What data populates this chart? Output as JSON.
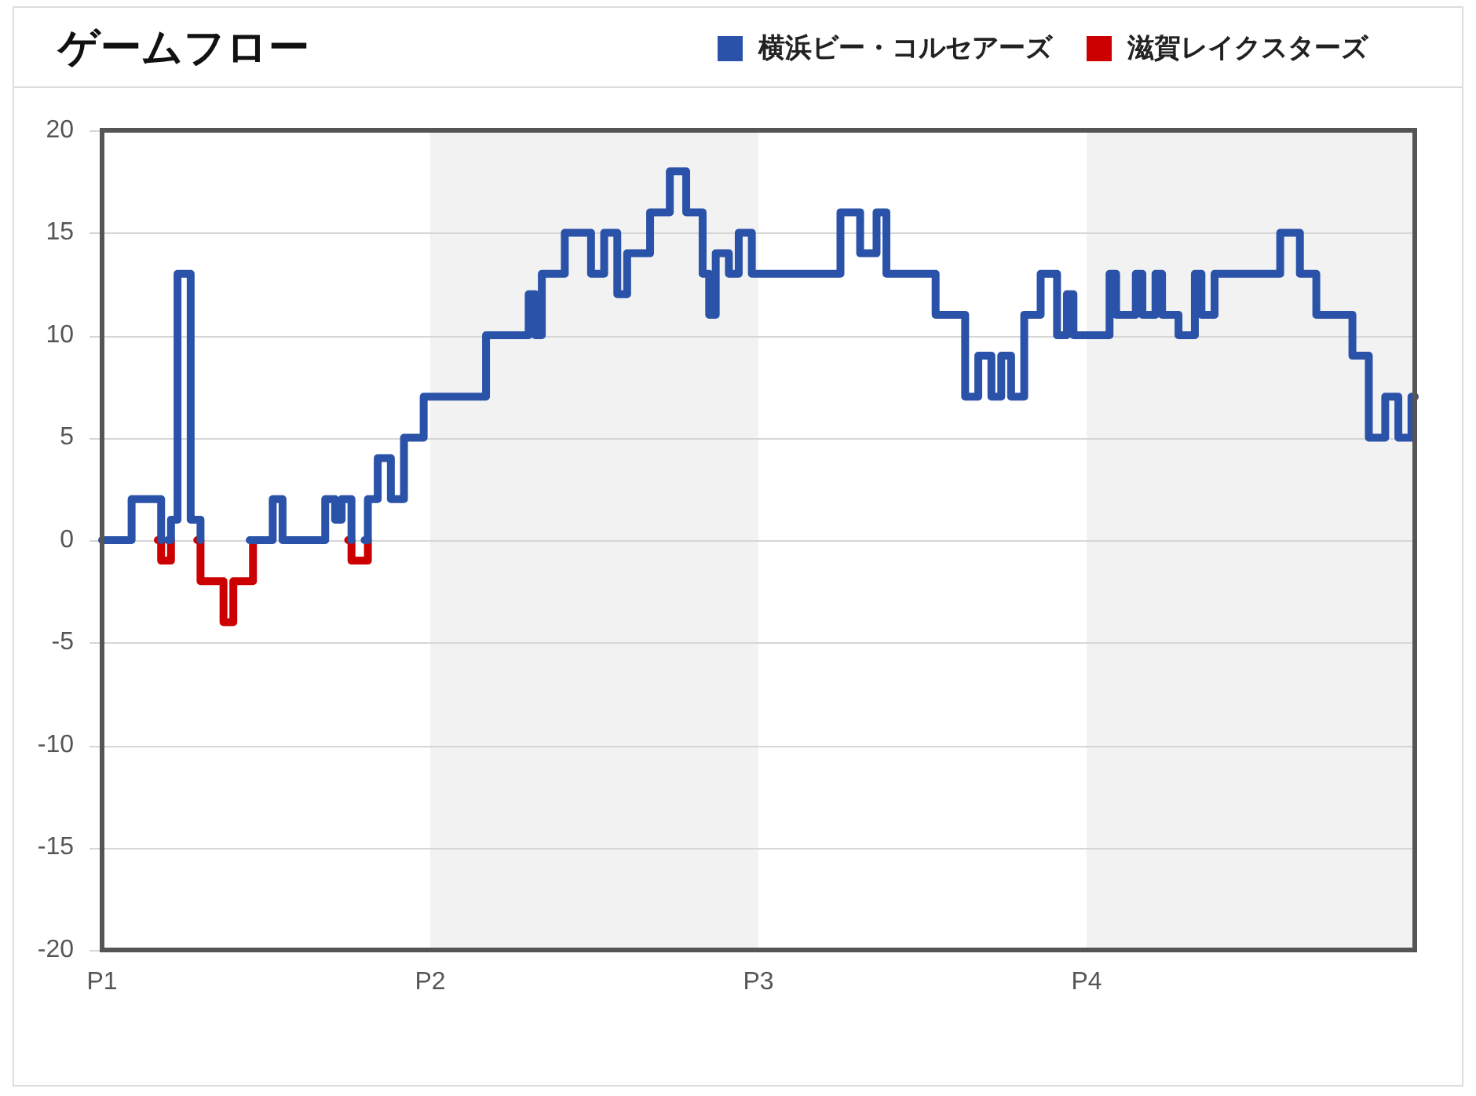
{
  "chart_data": {
    "type": "step",
    "title": "ゲームフロー",
    "legend": "top right",
    "grid": "y",
    "line_style": "solid",
    "marker": "none",
    "categories": [
      "P1",
      null,
      null,
      null,
      null,
      null,
      null,
      null,
      null,
      null,
      null,
      null,
      null,
      null,
      null,
      null,
      null,
      null,
      null,
      null,
      null,
      null,
      null,
      null,
      null,
      null,
      null,
      null,
      null,
      null,
      null,
      null,
      null,
      null,
      null,
      null,
      null,
      null,
      null,
      null,
      null,
      null,
      null,
      null,
      null,
      null,
      null,
      null,
      null,
      null,
      null,
      null,
      null,
      null,
      null,
      null,
      null,
      null,
      null,
      null,
      null,
      null,
      null,
      null,
      null,
      null,
      null,
      null,
      null,
      null,
      null,
      null,
      null,
      null,
      null,
      null,
      null,
      null,
      null,
      null,
      null,
      null,
      null,
      null,
      null,
      null,
      null,
      null,
      null,
      null,
      null,
      null,
      null,
      null,
      null,
      null,
      null,
      null,
      null,
      null,
      "P2",
      null,
      null,
      null,
      null,
      null,
      null,
      null,
      null,
      null,
      null,
      null,
      null,
      null,
      null,
      null,
      null,
      null,
      null,
      null,
      null,
      null,
      null,
      null,
      null,
      null,
      null,
      null,
      null,
      null,
      null,
      null,
      null,
      null,
      null,
      null,
      null,
      null,
      null,
      null,
      null,
      null,
      null,
      null,
      null,
      null,
      null,
      null,
      null,
      null,
      null,
      null,
      null,
      null,
      null,
      null,
      null,
      null,
      null,
      null,
      null,
      null,
      null,
      null,
      null,
      null,
      null,
      null,
      null,
      null,
      null,
      null,
      null,
      null,
      null,
      null,
      null,
      null,
      null,
      null,
      null,
      null,
      null,
      null,
      null,
      null,
      null,
      null,
      null,
      null,
      null,
      null,
      null,
      null,
      null,
      null,
      null,
      null,
      null,
      null,
      "P3",
      null,
      null,
      null,
      null,
      null,
      null,
      null,
      null,
      null,
      null,
      null,
      null,
      null,
      null,
      null,
      null,
      null,
      null,
      null,
      null,
      null,
      null,
      null,
      null,
      null,
      null,
      null,
      null,
      null,
      null,
      null,
      null,
      null,
      null,
      null,
      null,
      null,
      null,
      null,
      null,
      null,
      null,
      null,
      null,
      null,
      null,
      null,
      null,
      null,
      null,
      null,
      null,
      null,
      null,
      null,
      null,
      null,
      null,
      null,
      null,
      null,
      null,
      null,
      null,
      null,
      null,
      null,
      null,
      null,
      null,
      null,
      null,
      null,
      null,
      null,
      null,
      null,
      null,
      null,
      null,
      null,
      null,
      null,
      null,
      null,
      null,
      null,
      null,
      null,
      null,
      null,
      null,
      null,
      null,
      null,
      null,
      null,
      null,
      null,
      "P4",
      null,
      null,
      null,
      null,
      null,
      null,
      null,
      null,
      null,
      null,
      null,
      null,
      null,
      null,
      null,
      null,
      null,
      null,
      null,
      null,
      null,
      null,
      null,
      null,
      null,
      null,
      null,
      null,
      null,
      null,
      null,
      null,
      null,
      null,
      null,
      null,
      null,
      null,
      null,
      null,
      null,
      null,
      null,
      null,
      null,
      null,
      null,
      null,
      null,
      null,
      null,
      null,
      null,
      null,
      null,
      null,
      null,
      null,
      null,
      null,
      null,
      null,
      null,
      null,
      null,
      null,
      null,
      null,
      null,
      null,
      null,
      null,
      null,
      null,
      null,
      null,
      null,
      null,
      null,
      null,
      null,
      null,
      null,
      null,
      null,
      null,
      null,
      null,
      null,
      null,
      null,
      null,
      null,
      null,
      null,
      null,
      null,
      null,
      null,
      null
    ],
    "ylim": [
      -20,
      20
    ],
    "yticks": [
      -20,
      -15,
      -10,
      -5,
      0,
      5,
      10,
      15,
      20
    ],
    "series": [
      {
        "name": "横浜ビー・コルセアーズ",
        "color": "#2a52a8",
        "values": [
          0,
          0,
          0,
          0,
          0,
          0,
          0,
          0,
          0,
          2,
          2,
          2,
          2,
          2,
          2,
          2,
          2,
          2,
          0,
          null,
          0,
          1,
          1,
          13,
          13,
          13,
          13,
          1,
          1,
          1,
          0,
          null,
          null,
          null,
          null,
          null,
          null,
          null,
          null,
          null,
          null,
          null,
          null,
          null,
          null,
          0,
          0,
          0,
          0,
          0,
          0,
          0,
          2,
          2,
          2,
          0,
          0,
          0,
          0,
          0,
          0,
          0,
          0,
          0,
          0,
          0,
          0,
          0,
          2,
          2,
          2,
          1,
          1,
          2,
          2,
          2,
          0,
          null,
          null,
          null,
          0,
          2,
          2,
          2,
          4,
          4,
          4,
          4,
          2,
          2,
          2,
          2,
          5,
          5,
          5,
          5,
          5,
          5,
          7,
          7,
          7,
          7,
          7,
          7,
          7,
          7,
          7,
          7,
          7,
          7,
          7,
          7,
          7,
          7,
          7,
          7,
          7,
          10,
          10,
          10,
          10,
          10,
          10,
          10,
          10,
          10,
          10,
          10,
          10,
          10,
          12,
          12,
          10,
          10,
          13,
          13,
          13,
          13,
          13,
          13,
          13,
          15,
          15,
          15,
          15,
          15,
          15,
          15,
          15,
          13,
          13,
          13,
          13,
          15,
          15,
          15,
          15,
          12,
          12,
          12,
          14,
          14,
          14,
          14,
          14,
          14,
          14,
          16,
          16,
          16,
          16,
          16,
          16,
          18,
          18,
          18,
          18,
          18,
          16,
          16,
          16,
          16,
          16,
          13,
          13,
          11,
          11,
          14,
          14,
          14,
          14,
          13,
          13,
          13,
          15,
          15,
          15,
          15,
          13,
          13,
          13,
          13,
          13,
          13,
          13,
          13,
          13,
          13,
          13,
          13,
          13,
          13,
          13,
          13,
          13,
          13,
          13,
          13,
          13,
          13,
          13,
          13,
          13,
          13,
          13,
          16,
          16,
          16,
          16,
          16,
          16,
          14,
          14,
          14,
          14,
          14,
          16,
          16,
          16,
          13,
          13,
          13,
          13,
          13,
          13,
          13,
          13,
          13,
          13,
          13,
          13,
          13,
          13,
          13,
          11,
          11,
          11,
          11,
          11,
          11,
          11,
          11,
          11,
          7,
          7,
          7,
          7,
          9,
          9,
          9,
          9,
          7,
          7,
          7,
          9,
          9,
          9,
          7,
          7,
          7,
          7,
          11,
          11,
          11,
          11,
          11,
          13,
          13,
          13,
          13,
          13,
          10,
          10,
          10,
          12,
          12,
          10,
          10,
          10,
          10,
          10,
          10,
          10,
          10,
          10,
          10,
          10,
          13,
          13,
          11,
          11,
          11,
          11,
          11,
          11,
          13,
          13,
          11,
          11,
          11,
          11,
          13,
          13,
          11,
          11,
          11,
          11,
          11,
          10,
          10,
          10,
          10,
          10,
          13,
          13,
          11,
          11,
          11,
          11,
          13,
          13,
          13,
          13,
          13,
          13,
          13,
          13,
          13,
          13,
          13,
          13,
          13,
          13,
          13,
          13,
          13,
          13,
          13,
          13,
          15,
          15,
          15,
          15,
          15,
          15,
          13,
          13,
          13,
          13,
          13,
          11,
          11,
          11,
          11,
          11,
          11,
          11,
          11,
          11,
          11,
          11,
          9,
          9,
          9,
          9,
          9,
          5,
          5,
          5,
          5,
          5,
          7,
          7,
          7,
          7,
          5,
          5,
          5,
          5,
          7,
          7
        ]
      },
      {
        "name": "滋賀レイクスターズ",
        "color": "#cc0000",
        "values": [
          null,
          null,
          null,
          null,
          null,
          null,
          null,
          null,
          null,
          null,
          null,
          null,
          null,
          null,
          null,
          null,
          null,
          0,
          -1,
          -1,
          -1,
          0,
          null,
          null,
          null,
          null,
          null,
          null,
          null,
          0,
          -2,
          -2,
          -2,
          -2,
          -2,
          -2,
          -2,
          -4,
          -4,
          -4,
          -2,
          -2,
          -2,
          -2,
          -2,
          -2,
          0,
          null,
          null,
          null,
          null,
          null,
          null,
          null,
          null,
          null,
          null,
          null,
          null,
          null,
          null,
          null,
          null,
          null,
          null,
          null,
          null,
          null,
          null,
          null,
          null,
          null,
          null,
          null,
          null,
          0,
          -1,
          -1,
          -1,
          -1,
          -1,
          0,
          null,
          null,
          null,
          null,
          null,
          null,
          null,
          null,
          null,
          null,
          null,
          null,
          null,
          null,
          null,
          null,
          null,
          null,
          null,
          null,
          null,
          null,
          null,
          null,
          null,
          null,
          null,
          null,
          null,
          null,
          null,
          null,
          null,
          null,
          null,
          null,
          null,
          null,
          null,
          null,
          null,
          null,
          null,
          null,
          null,
          null,
          null,
          null,
          null,
          null,
          null,
          null,
          null,
          null,
          null,
          null,
          null,
          null,
          null,
          null,
          null,
          null,
          null,
          null,
          null,
          null,
          null,
          null,
          null,
          null,
          null,
          null,
          null,
          null,
          null,
          null,
          null,
          null,
          null,
          null,
          null,
          null,
          null,
          null,
          null,
          null,
          null,
          null,
          null,
          null,
          null,
          null,
          null,
          null,
          null,
          null,
          null,
          null,
          null,
          null,
          null,
          null,
          null,
          null,
          null,
          null,
          null,
          null,
          null,
          null,
          null,
          null,
          null,
          null,
          null,
          null,
          null,
          null,
          null,
          null,
          null,
          null,
          null,
          null,
          null,
          null,
          null,
          null,
          null,
          null,
          null,
          null,
          null,
          null,
          null,
          null,
          null,
          null,
          null,
          null,
          null,
          null,
          null,
          null,
          null,
          null,
          null,
          null,
          null,
          null,
          null,
          null,
          null,
          null,
          null,
          null,
          null,
          null,
          null,
          null,
          null,
          null,
          null,
          null,
          null,
          null,
          null,
          null,
          null,
          null,
          null,
          null,
          null,
          null,
          null,
          null,
          null,
          null,
          null,
          null,
          null,
          null,
          null,
          null,
          null,
          null,
          null,
          null,
          null,
          null,
          null,
          null,
          null,
          null,
          null,
          null,
          null,
          null,
          null,
          null,
          null,
          null,
          null,
          null,
          null,
          null,
          null,
          null,
          null,
          null,
          null,
          null,
          null,
          null,
          null,
          null,
          null,
          null,
          null,
          null,
          null,
          null,
          null,
          null,
          null,
          null,
          null,
          null,
          null,
          null,
          null,
          null,
          null,
          null,
          null,
          null,
          null,
          null,
          null,
          null,
          null,
          null,
          null,
          null,
          null,
          null,
          null,
          null,
          null,
          null,
          null,
          null,
          null,
          null,
          null,
          null,
          null,
          null,
          null,
          null,
          null,
          null,
          null,
          null,
          null,
          null,
          null,
          null,
          null,
          null,
          null,
          null,
          null,
          null,
          null,
          null,
          null,
          null,
          null,
          null,
          null,
          null,
          null,
          null,
          null,
          null,
          null,
          null,
          null,
          null,
          null,
          null,
          null,
          null,
          null,
          null,
          null,
          null,
          null,
          null,
          null,
          null,
          null,
          null,
          null,
          null,
          null,
          null,
          null,
          null,
          null,
          null,
          null,
          null,
          null,
          null,
          null,
          null,
          null
        ]
      }
    ]
  }
}
